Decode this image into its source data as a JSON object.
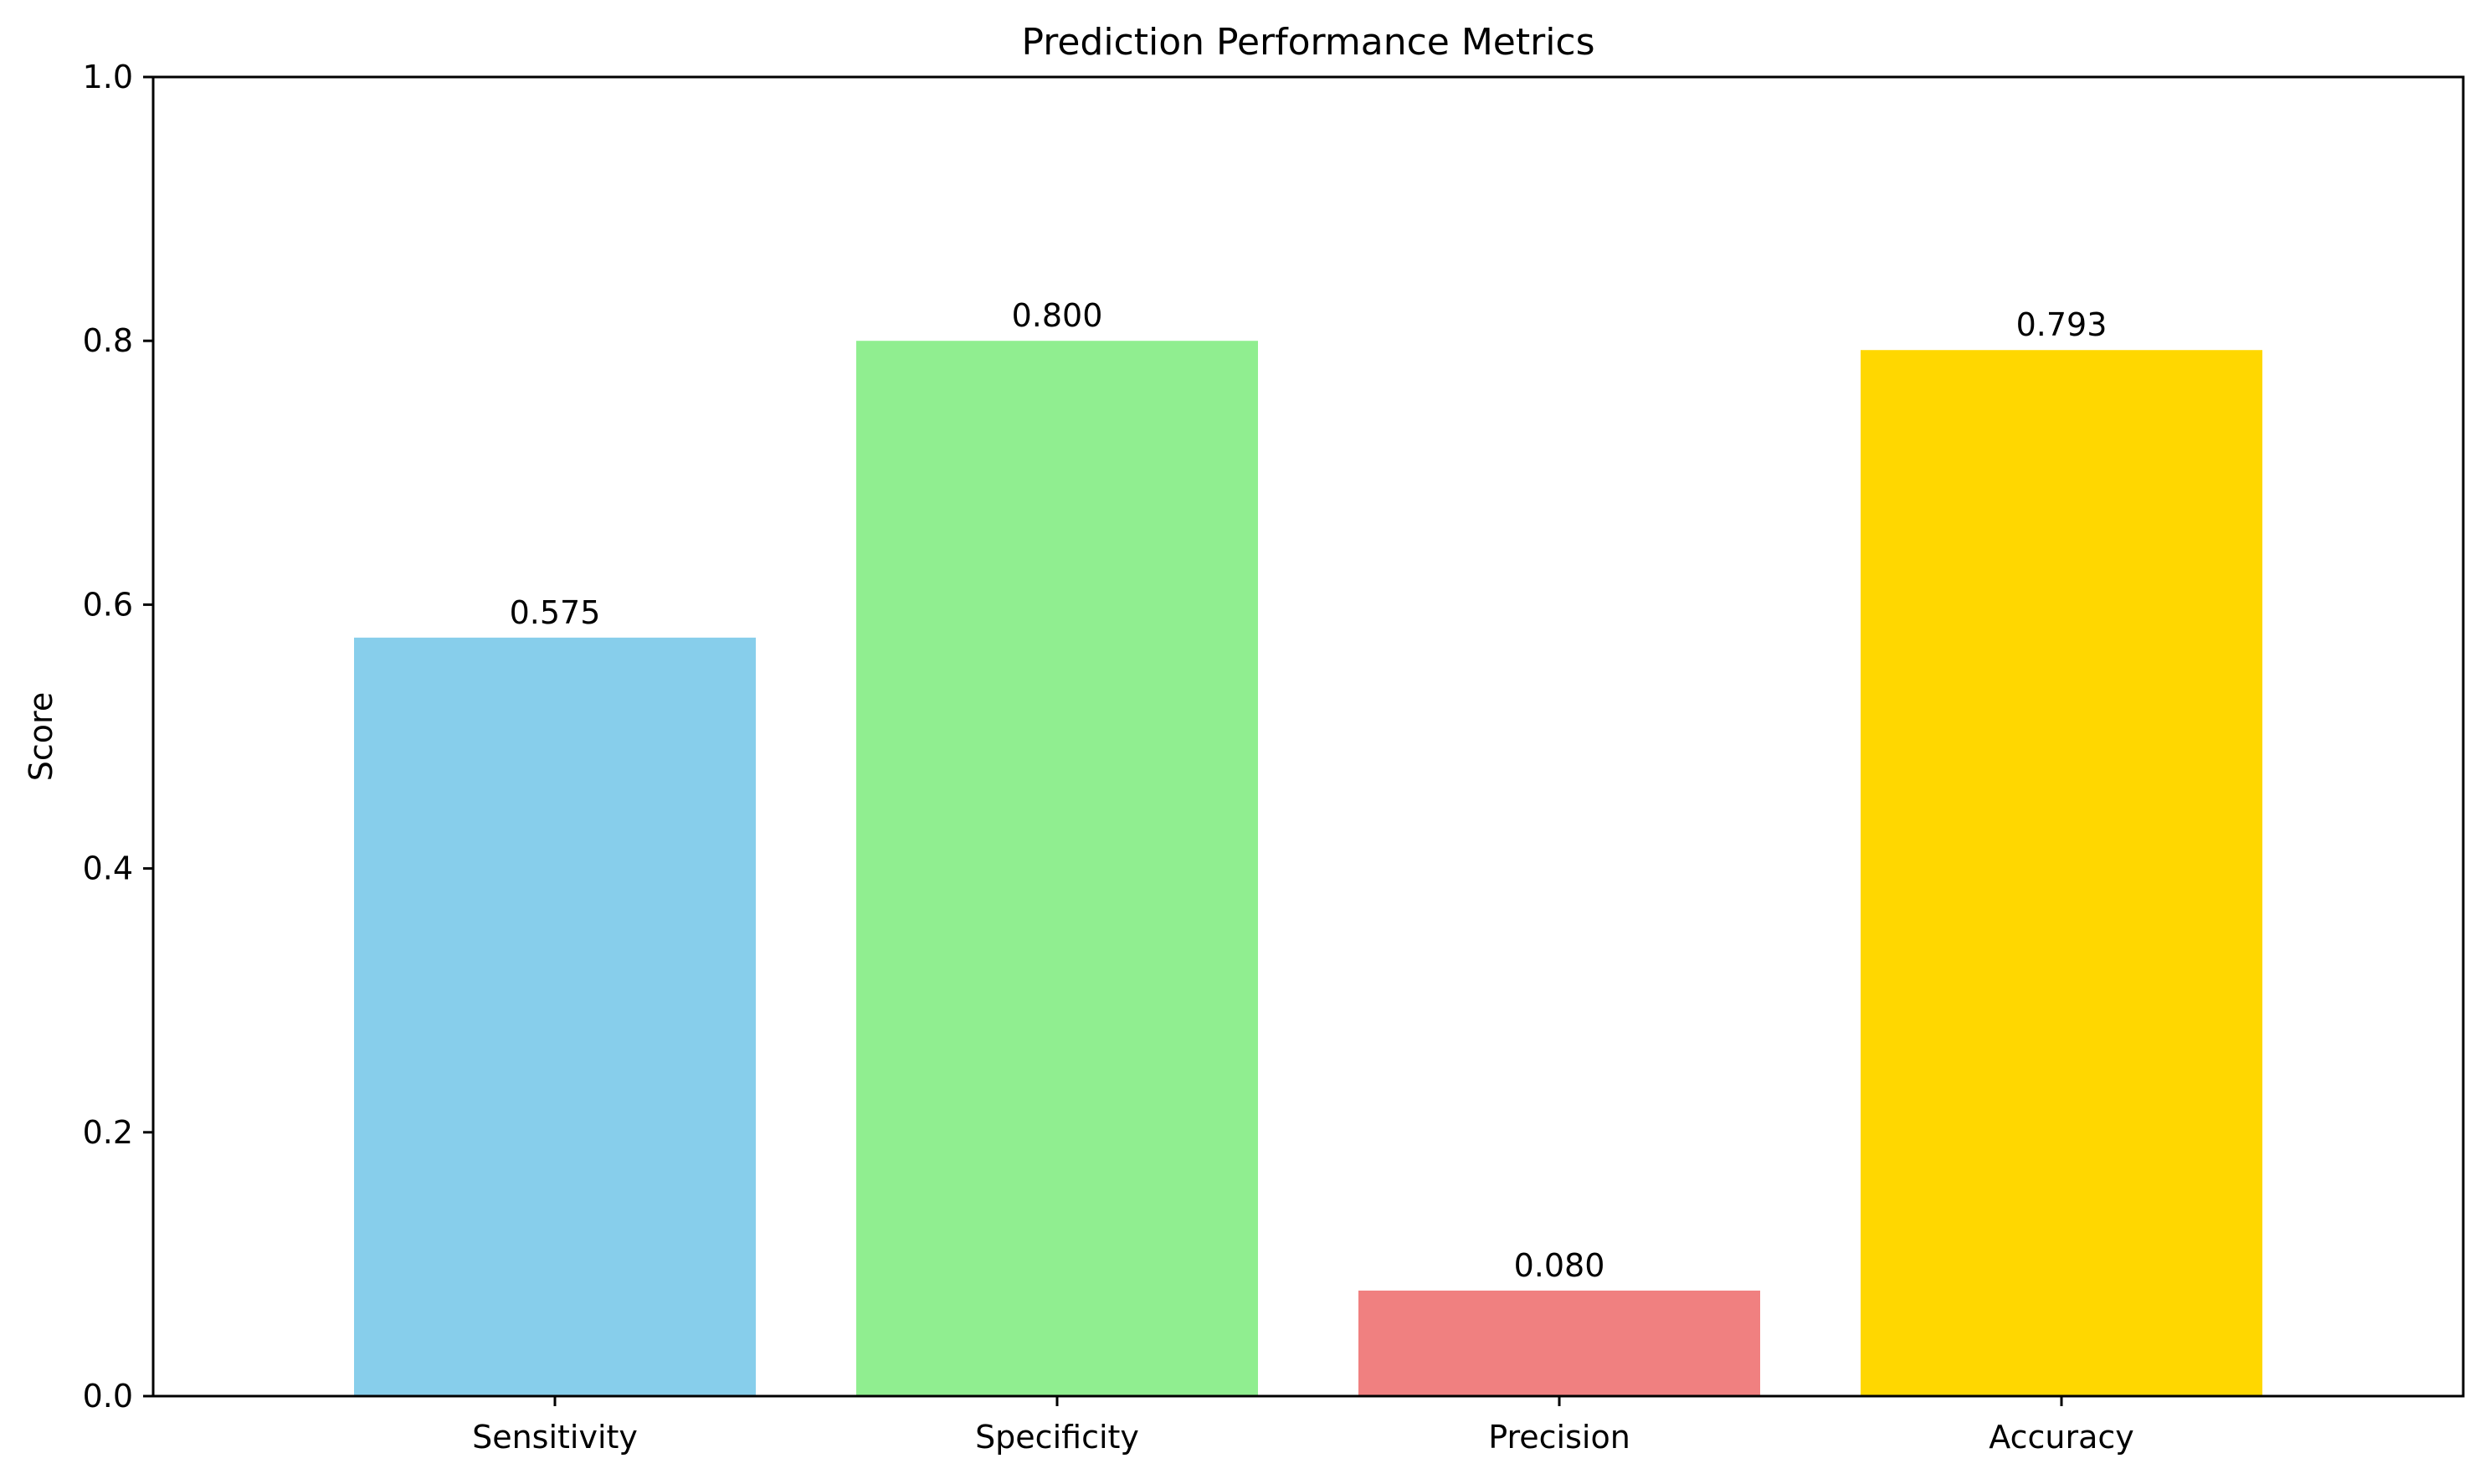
{
  "chart_data": {
    "type": "bar",
    "title": "Prediction Performance Metrics",
    "xlabel": "",
    "ylabel": "Score",
    "categories": [
      "Sensitivity",
      "Specificity",
      "Precision",
      "Accuracy"
    ],
    "values": [
      0.575,
      0.8,
      0.08,
      0.793
    ],
    "value_labels": [
      "0.575",
      "0.800",
      "0.080",
      "0.793"
    ],
    "colors": [
      "#87CEEB",
      "#90EE90",
      "#F08080",
      "#FFD700"
    ],
    "ylim": [
      0,
      1.0
    ],
    "yticks": [
      0.0,
      0.2,
      0.4,
      0.6,
      0.8,
      1.0
    ],
    "ytick_labels": [
      "0.0",
      "0.2",
      "0.4",
      "0.6",
      "0.8",
      "1.0"
    ],
    "grid": false,
    "legend": "none"
  }
}
